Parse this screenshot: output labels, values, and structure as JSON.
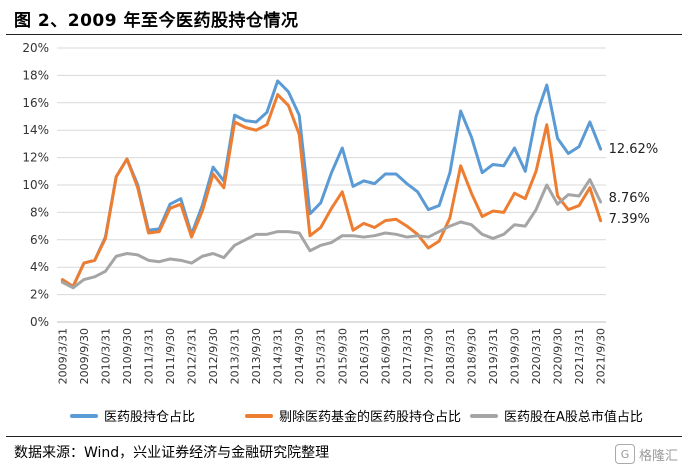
{
  "title": "图 2、2009 年至今医药股持仓情况",
  "source": "数据来源：Wind，兴业证券经济与金融研究院整理",
  "watermark": "格隆汇",
  "watermark_logo": "G",
  "colors": {
    "blue": "#5b9bd5",
    "orange": "#ed7d31",
    "gray": "#a5a5a5"
  },
  "chart_data": {
    "type": "line",
    "ylim": [
      0,
      20
    ],
    "yticks": [
      "0%",
      "2%",
      "4%",
      "6%",
      "8%",
      "10%",
      "12%",
      "14%",
      "16%",
      "18%",
      "20%"
    ],
    "xticks": [
      "2009/3/31",
      "2009/9/30",
      "2010/3/31",
      "2010/9/30",
      "2011/3/31",
      "2011/9/30",
      "2012/3/31",
      "2012/9/30",
      "2013/3/31",
      "2013/9/30",
      "2014/3/31",
      "2014/9/30",
      "2015/3/31",
      "2015/9/30",
      "2016/3/31",
      "2016/9/30",
      "2017/3/31",
      "2017/9/30",
      "2018/3/31",
      "2018/9/30",
      "2019/3/31",
      "2019/9/30",
      "2020/3/31",
      "2020/9/30",
      "2021/3/31",
      "2021/9/30"
    ],
    "n_points": 51,
    "series": [
      {
        "name": "医药股持仓占比",
        "color": "#5b9bd5",
        "values": [
          3.0,
          2.6,
          4.3,
          4.5,
          6.2,
          10.6,
          11.9,
          10.0,
          6.7,
          6.8,
          8.6,
          9.0,
          6.4,
          8.5,
          11.3,
          10.3,
          15.1,
          14.7,
          14.6,
          15.3,
          17.6,
          16.8,
          15.1,
          7.9,
          8.7,
          10.9,
          12.7,
          9.9,
          10.3,
          10.1,
          10.8,
          10.8,
          10.1,
          9.5,
          8.2,
          8.5,
          10.9,
          15.4,
          13.5,
          10.9,
          11.5,
          11.4,
          12.7,
          11.0,
          15.0,
          17.3,
          13.4,
          12.3,
          12.8,
          14.6,
          12.62
        ],
        "end_label": "12.62%"
      },
      {
        "name": "剔除医药基金的医药股持仓占比",
        "color": "#ed7d31",
        "values": [
          3.1,
          2.6,
          4.3,
          4.5,
          6.1,
          10.6,
          11.9,
          9.8,
          6.5,
          6.6,
          8.3,
          8.6,
          6.2,
          8.1,
          10.8,
          9.8,
          14.6,
          14.2,
          14.0,
          14.4,
          16.6,
          15.8,
          13.7,
          6.3,
          6.9,
          8.3,
          9.5,
          6.7,
          7.2,
          6.9,
          7.4,
          7.5,
          7.0,
          6.4,
          5.4,
          5.9,
          7.6,
          11.4,
          9.4,
          7.7,
          8.1,
          8.0,
          9.4,
          9.0,
          11.0,
          14.4,
          9.2,
          8.2,
          8.5,
          9.8,
          7.39
        ],
        "end_label": "7.39%"
      },
      {
        "name": "医药股在A股总市值占比",
        "color": "#a5a5a5",
        "values": [
          2.9,
          2.5,
          3.1,
          3.3,
          3.7,
          4.8,
          5.0,
          4.9,
          4.5,
          4.4,
          4.6,
          4.5,
          4.3,
          4.8,
          5.0,
          4.7,
          5.6,
          6.0,
          6.4,
          6.4,
          6.6,
          6.6,
          6.5,
          5.2,
          5.6,
          5.8,
          6.3,
          6.3,
          6.2,
          6.3,
          6.5,
          6.4,
          6.2,
          6.3,
          6.2,
          6.6,
          7.0,
          7.3,
          7.1,
          6.4,
          6.1,
          6.4,
          7.1,
          7.0,
          8.2,
          10.0,
          8.6,
          9.3,
          9.2,
          10.4,
          8.76
        ],
        "end_label": "8.76%"
      }
    ]
  }
}
